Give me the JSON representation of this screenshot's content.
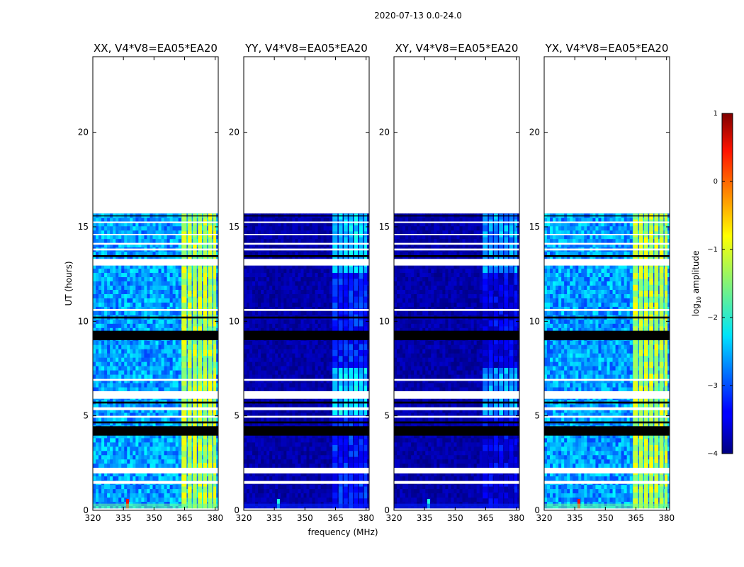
{
  "chart_data": {
    "type": "heatmap",
    "suptitle": "2020-07-13 0.0-24.0",
    "xlabel": "frequency (MHz)",
    "ylabel": "UT (hours)",
    "xlim": [
      320,
      381.5
    ],
    "ylim": [
      0,
      24
    ],
    "xticks": [
      320,
      335,
      350,
      365,
      380
    ],
    "yticks": [
      0,
      5,
      10,
      15,
      20
    ],
    "data_end_hour": 15.7,
    "panels": [
      {
        "title": "XX, V4*V8=EA05*EA20",
        "background_level": -2.6,
        "strong_band_level": -1.2,
        "autocorrelation": true
      },
      {
        "title": "YY, V4*V8=EA05*EA20",
        "background_level": -3.8,
        "strong_band_level": -2.3,
        "autocorrelation": false
      },
      {
        "title": "XY, V4*V8=EA05*EA20",
        "background_level": -3.8,
        "strong_band_level": -2.6,
        "autocorrelation": false
      },
      {
        "title": "YX, V4*V8=EA05*EA20",
        "background_level": -2.6,
        "strong_band_level": -1.2,
        "autocorrelation": true
      }
    ],
    "flagged_hours": [
      [
        0.0,
        0.1
      ],
      [
        1.4,
        1.55
      ],
      [
        1.95,
        2.25
      ],
      [
        5.3,
        5.45
      ],
      [
        4.9,
        5.0
      ],
      [
        5.9,
        6.3
      ],
      [
        6.85,
        6.95
      ],
      [
        10.55,
        10.65
      ],
      [
        12.95,
        13.3
      ],
      [
        13.75,
        13.85
      ],
      [
        14.05,
        14.15
      ],
      [
        14.55,
        14.62
      ],
      [
        15.2,
        15.28
      ]
    ],
    "dark_hours": [
      [
        3.95,
        4.45
      ],
      [
        4.6,
        4.7
      ],
      [
        5.65,
        5.75
      ],
      [
        9.0,
        9.5
      ],
      [
        10.15,
        10.25
      ],
      [
        13.4,
        13.5
      ],
      [
        15.55,
        15.6
      ]
    ],
    "channel_bands_mhz": [
      [
        363.5,
        366
      ],
      [
        366.5,
        368.5
      ],
      [
        369,
        371
      ],
      [
        371.5,
        373.5
      ],
      [
        374,
        376
      ],
      [
        376.5,
        378.5
      ],
      [
        379,
        380.5
      ]
    ],
    "colorbar": {
      "label": "log10 amplitude",
      "label_main": "log",
      "label_sub": "10",
      "label_rest": " amplitude",
      "min": -4,
      "max": 1,
      "ticks": [
        "1",
        "0",
        "−1",
        "−2",
        "−3",
        "−4"
      ],
      "tick_values": [
        1,
        0,
        -1,
        -2,
        -3,
        -4
      ],
      "colormap": "jet"
    }
  }
}
